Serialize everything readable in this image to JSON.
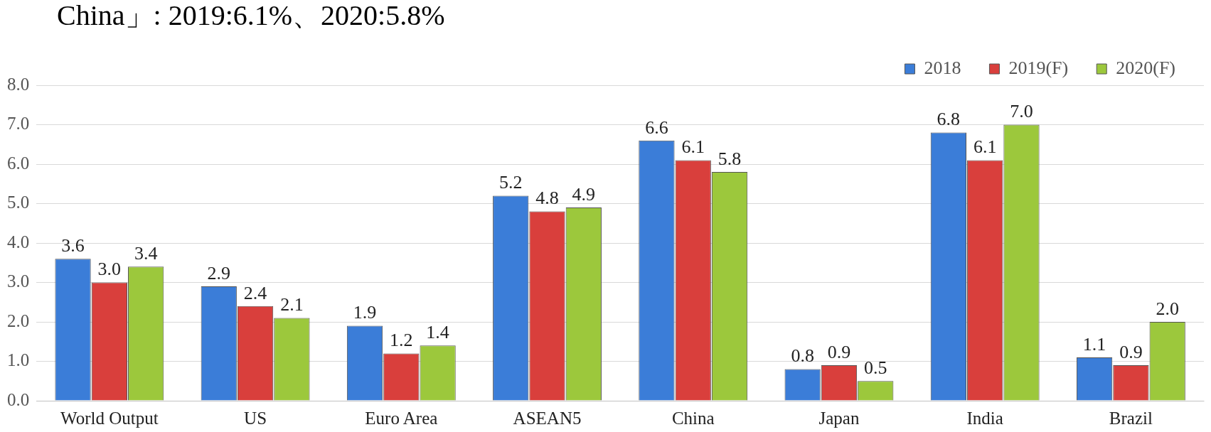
{
  "chart_data": {
    "type": "bar",
    "title": "China」: 2019:6.1%、2020:5.8%",
    "categories": [
      "World Output",
      "US",
      "Euro Area",
      "ASEAN5",
      "China",
      "Japan",
      "India",
      "Brazil"
    ],
    "series": [
      {
        "name": "2018",
        "color": "#3b7dd8",
        "values": [
          3.6,
          2.9,
          1.9,
          5.2,
          6.6,
          0.8,
          6.8,
          1.1
        ],
        "value_labels": [
          "3.6",
          "2.9",
          "1.9",
          "5.2",
          "6.6",
          "0.8",
          "6.8",
          "1.1"
        ]
      },
      {
        "name": "2019(F)",
        "color": "#d93f3c",
        "values": [
          3.0,
          2.4,
          1.2,
          4.8,
          6.1,
          0.9,
          6.1,
          0.9
        ],
        "value_labels": [
          "3.0",
          "2.4",
          "1.2",
          "4.8",
          "6.1",
          "0.9",
          "6.1",
          "0.9"
        ]
      },
      {
        "name": "2020(F)",
        "color": "#9cc83c",
        "values": [
          3.4,
          2.1,
          1.4,
          4.9,
          5.8,
          0.5,
          7.0,
          2.0
        ],
        "value_labels": [
          "3.4",
          "2.1",
          "1.4",
          "4.9",
          "5.8",
          "0.5",
          "7.0",
          "2.0"
        ]
      }
    ],
    "ylim": [
      0,
      8
    ],
    "yticks": [
      {
        "value": 0,
        "label": "0.0"
      },
      {
        "value": 1,
        "label": "1.0"
      },
      {
        "value": 2,
        "label": "2.0"
      },
      {
        "value": 3,
        "label": "3.0"
      },
      {
        "value": 4,
        "label": "4.0"
      },
      {
        "value": 5,
        "label": "5.0"
      },
      {
        "value": 6,
        "label": "6.0"
      },
      {
        "value": 7,
        "label": "7.0"
      },
      {
        "value": 8,
        "label": "8.0"
      }
    ],
    "grid": "y",
    "legend": "top right"
  }
}
